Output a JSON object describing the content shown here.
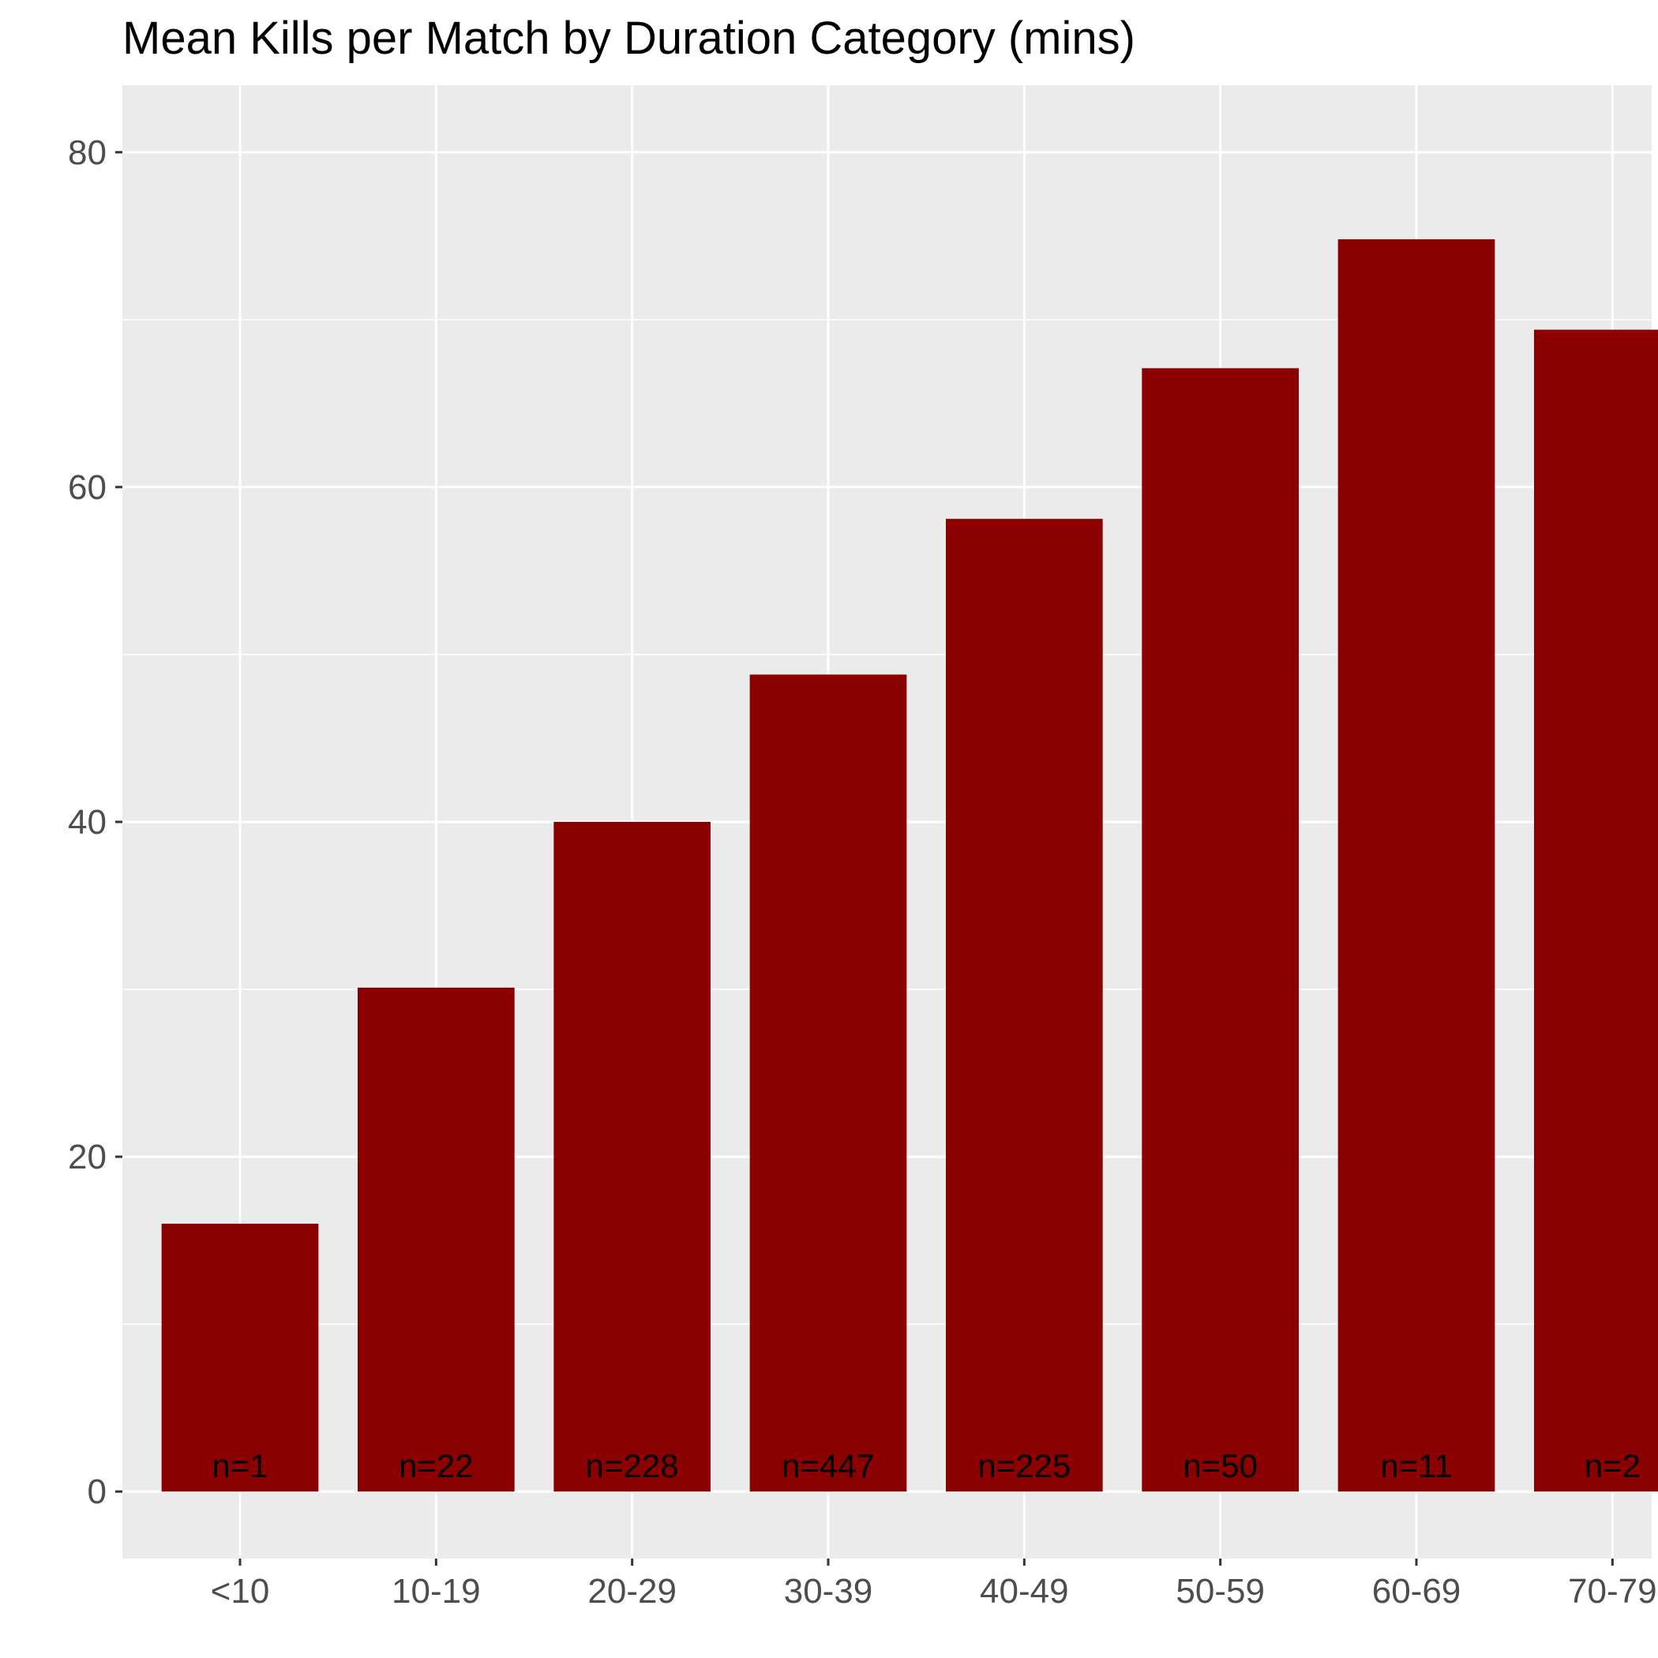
{
  "chart_data": {
    "type": "bar",
    "title": "Mean Kills per Match by Duration Category (mins)",
    "xlabel": "",
    "ylabel": "",
    "categories": [
      "<10",
      "10-19",
      "20-29",
      "30-39",
      "40-49",
      "50-59",
      "60-69",
      "70-79"
    ],
    "values": [
      16.0,
      30.1,
      40.0,
      48.8,
      58.1,
      67.1,
      74.8,
      69.4
    ],
    "bar_labels": [
      "n=1",
      "n=22",
      "n=228",
      "n=447",
      "n=225",
      "n=50",
      "n=11",
      "n=2"
    ],
    "ylim": [
      -4,
      84
    ],
    "y_ticks": [
      0,
      20,
      40,
      60,
      80
    ],
    "y_tick_labels": [
      "0",
      "20",
      "40",
      "60",
      "80"
    ],
    "grid": true,
    "legend": "none",
    "colors": {
      "bar": "#8b0000",
      "panel": "#ebebeb",
      "grid": "#ffffff",
      "tick_text": "#4d4d4d"
    }
  }
}
